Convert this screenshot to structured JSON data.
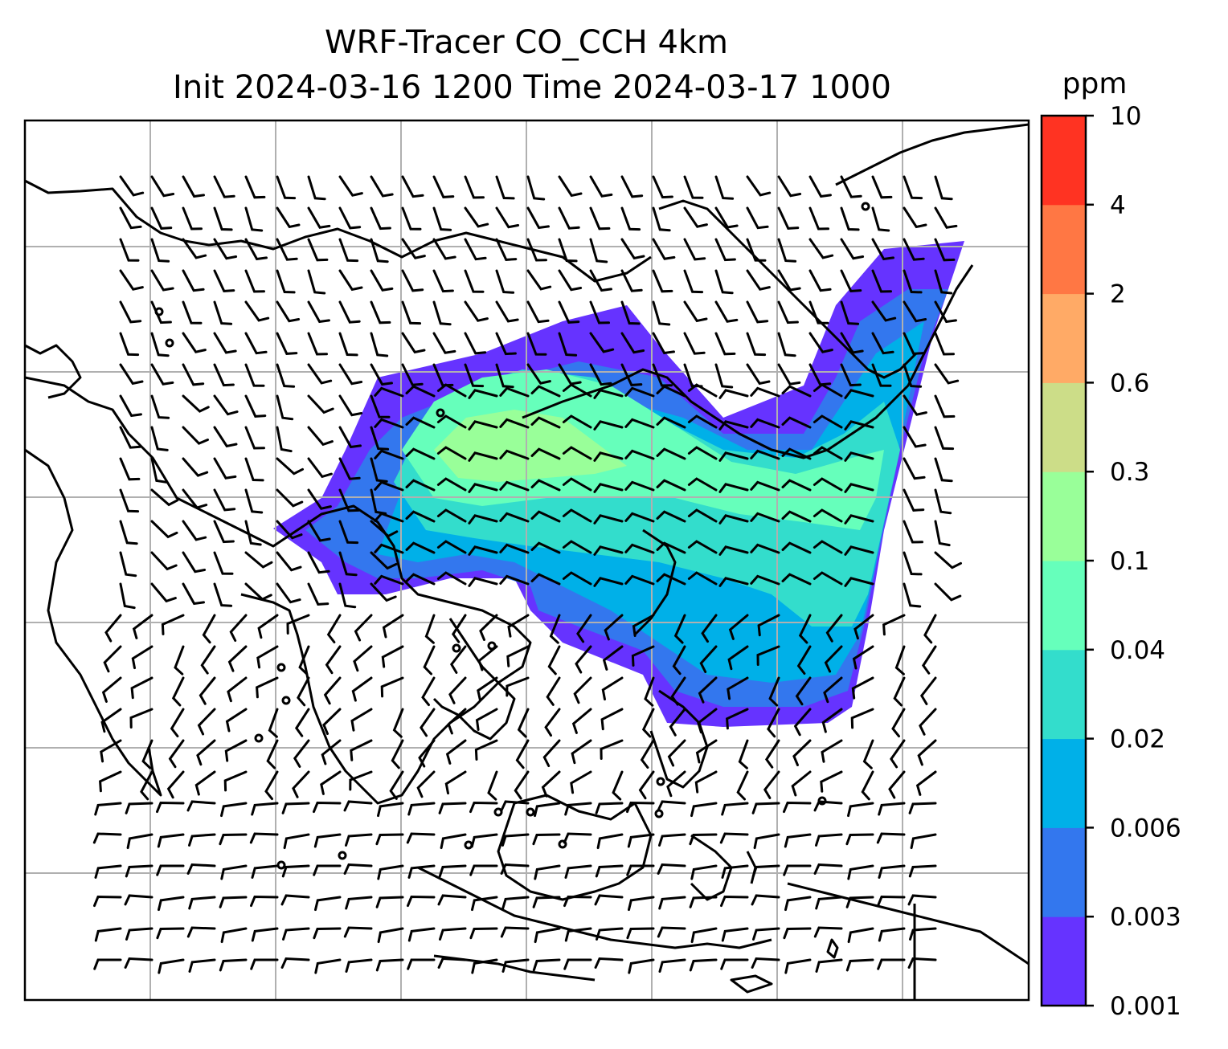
{
  "title": {
    "line1": "WRF-Tracer CO_CCH 4km",
    "line2": "Init 2024-03-16 1200 Time 2024-03-17 1000"
  },
  "colorbar": {
    "unit": "ppm",
    "levels": [
      "0.001",
      "0.003",
      "0.006",
      "0.02",
      "0.04",
      "0.1",
      "0.3",
      "0.6",
      "2",
      "4",
      "10"
    ],
    "colors": [
      "#6633ff",
      "#3377ee",
      "#00b0e8",
      "#33ddcc",
      "#66ffbb",
      "#99ff99",
      "#ccdd88",
      "#ffaa66",
      "#ff7744",
      "#ff3322"
    ]
  },
  "map": {
    "gridline_color": "#b0b0b0",
    "coastline_color": "#000000",
    "grid_columns": 8,
    "grid_rows": 7
  }
}
